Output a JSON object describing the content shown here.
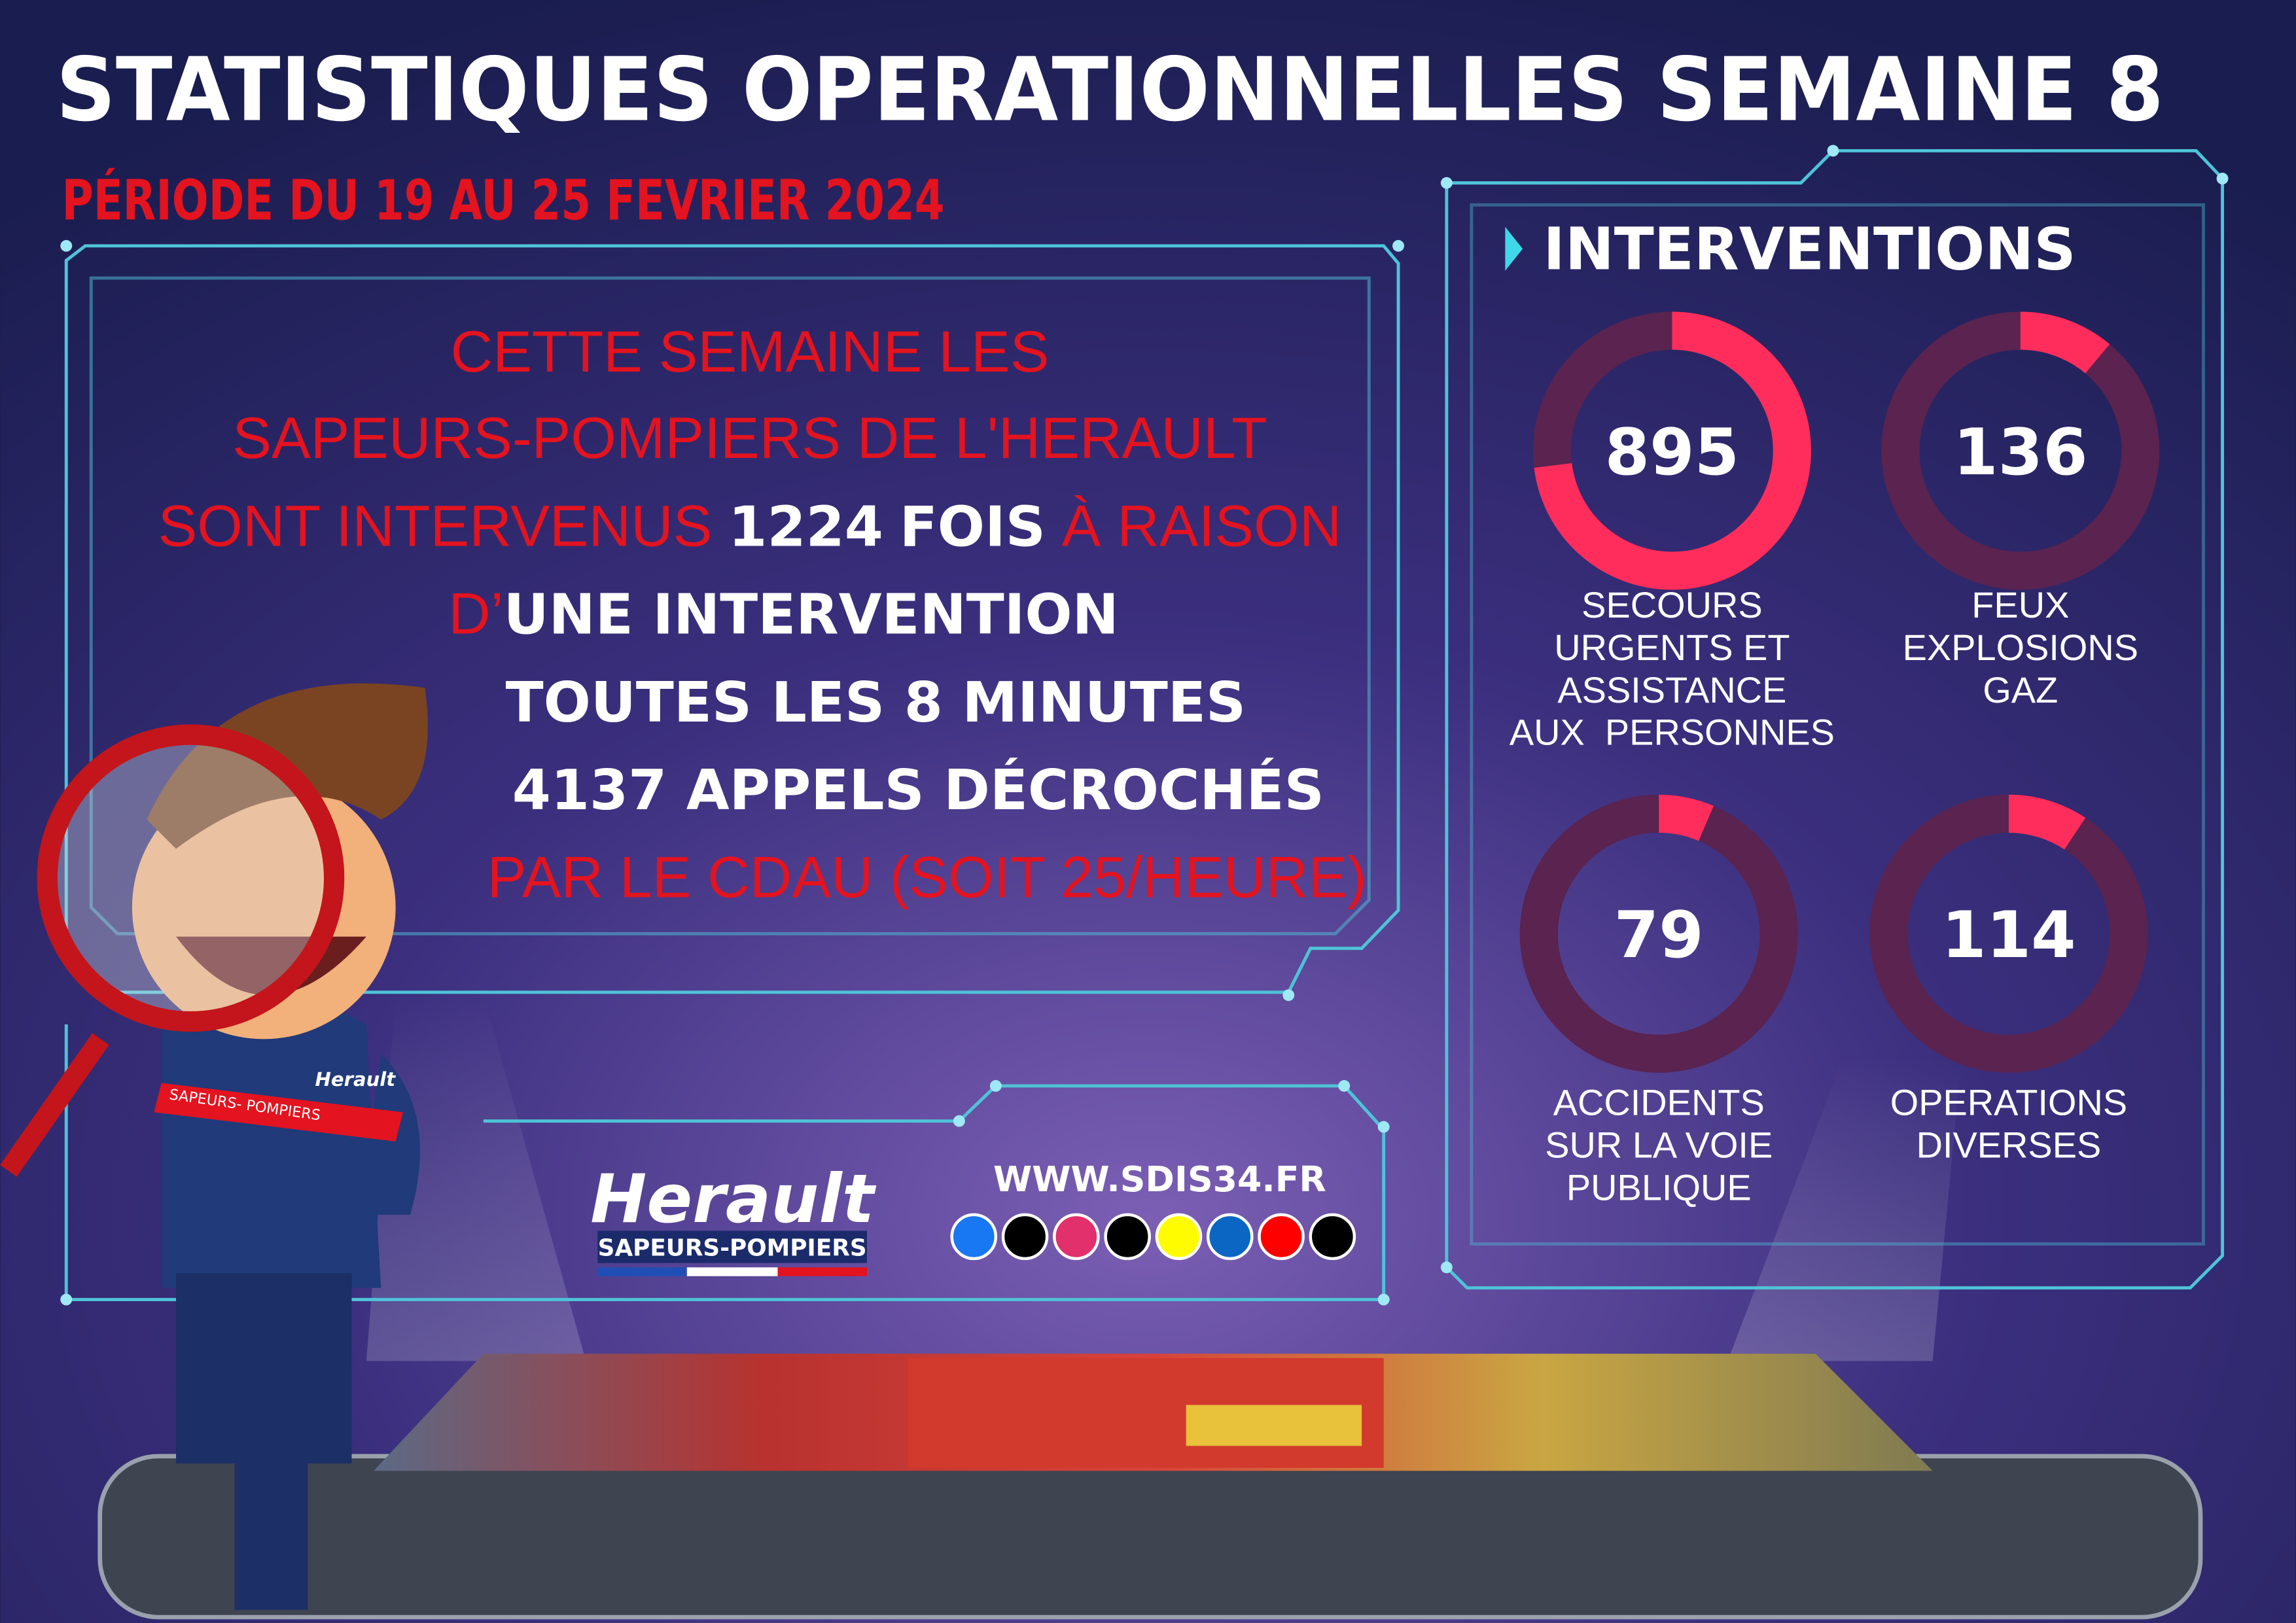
{
  "header": {
    "title": "STATISTIQUES OPERATIONNELLES SEMAINE 8",
    "period": "PÉRIODE DU 19 AU 25 FEVRIER 2024"
  },
  "summary": {
    "line1": "CETTE SEMAINE LES",
    "line2": "SAPEURS-POMPIERS DE L'HERAULT",
    "line3_start": "SONT INTERVENUS",
    "total": 1224,
    "line3_unit": "FOIS",
    "line3_end": "À RAISON",
    "line4_start": "D’",
    "line4_end": "UNE INTERVENTION",
    "line5": "TOUTES LES 8 MINUTES",
    "calls": 4137,
    "line6": "APPELS DÉCROCHÉS",
    "line7": "PAR LE CDAU (SOIT 25/HEURE)"
  },
  "interventions": {
    "title": "INTERVENTIONS",
    "items": [
      {
        "value": 895,
        "label": [
          "SECOURS",
          "URGENTS ET",
          "ASSISTANCE",
          "AUX  PERSONNES"
        ]
      },
      {
        "value": 136,
        "label": [
          "FEUX",
          "EXPLOSIONS",
          "GAZ"
        ]
      },
      {
        "value": 79,
        "label": [
          "ACCIDENTS",
          "SUR LA VOIE",
          "PUBLIQUE"
        ]
      },
      {
        "value": 114,
        "label": [
          "OPERATIONS",
          "DIVERSES"
        ]
      }
    ]
  },
  "footer": {
    "logo": "Herault",
    "subtitle": "SAPEURS-POMPIERS",
    "website": "WWW.SDIS34.FR"
  },
  "character": {
    "badge": "SAPEURS- POMPIERS",
    "logo": "Herault"
  }
}
